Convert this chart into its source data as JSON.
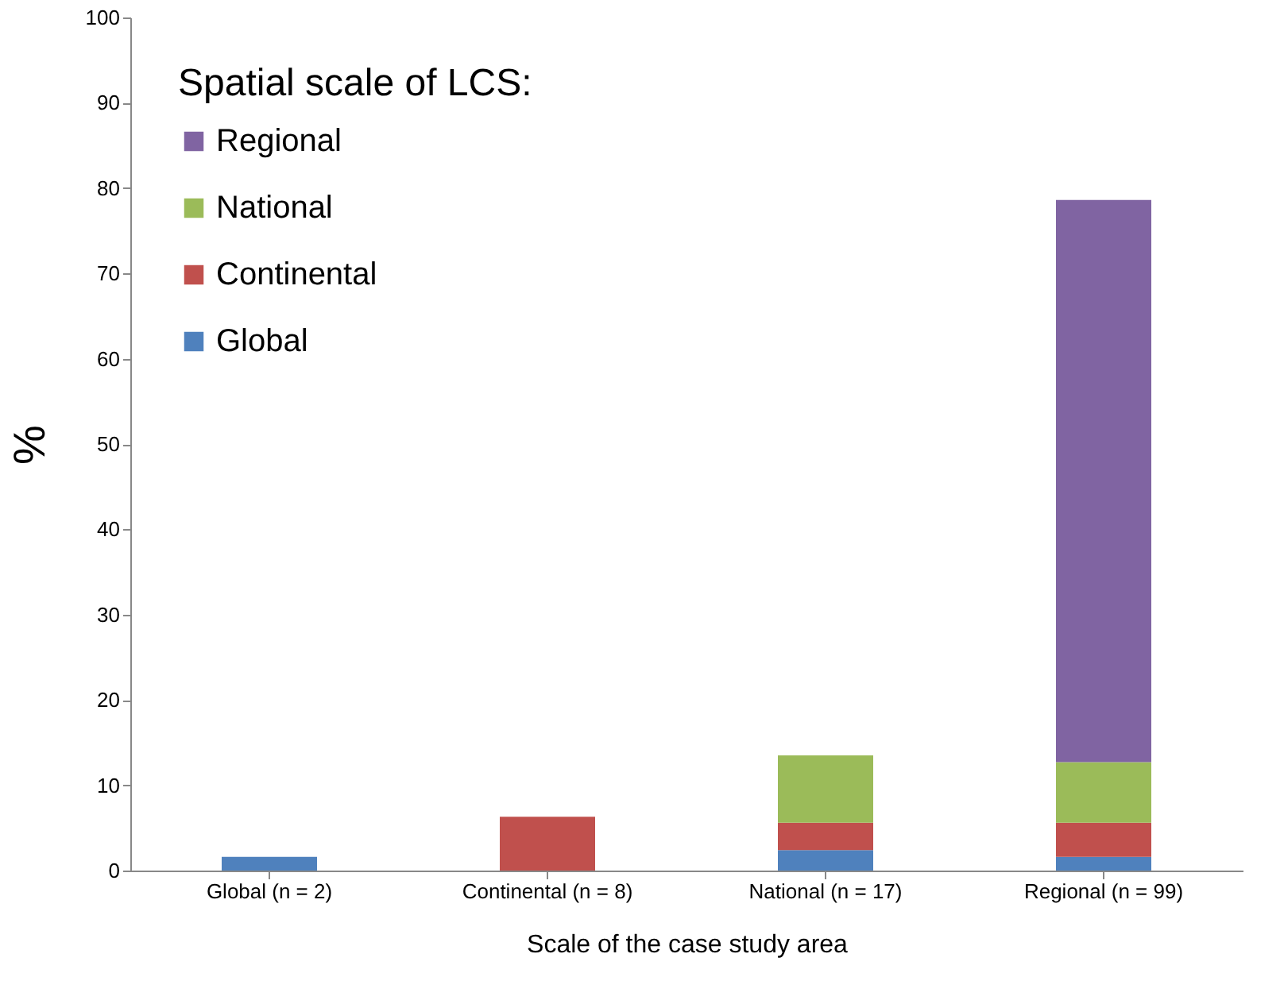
{
  "chart_data": {
    "type": "bar",
    "stacked": true,
    "xlabel": "Scale of the case study area",
    "ylabel": "%",
    "legend_title": "Spatial scale of LCS:",
    "legend": "top left",
    "categories": [
      "Global (n = 2)",
      "Continental (n = 8)",
      "National (n = 17)",
      "Regional (n = 99)"
    ],
    "series": [
      {
        "name": "Global",
        "color": "#4f81bd",
        "values": [
          1.6,
          null,
          2.4,
          1.6
        ]
      },
      {
        "name": "Continental",
        "color": "#c0504d",
        "values": [
          null,
          6.3,
          3.2,
          4.0
        ]
      },
      {
        "name": "National",
        "color": "#9bbb59",
        "values": [
          null,
          null,
          7.9,
          7.1
        ]
      },
      {
        "name": "Regional",
        "color": "#8064a2",
        "values": [
          null,
          null,
          null,
          65.9
        ]
      }
    ],
    "ylim": [
      0,
      100
    ],
    "yticks": [
      0,
      10,
      20,
      30,
      40,
      50,
      60,
      70,
      80,
      90,
      100
    ]
  }
}
